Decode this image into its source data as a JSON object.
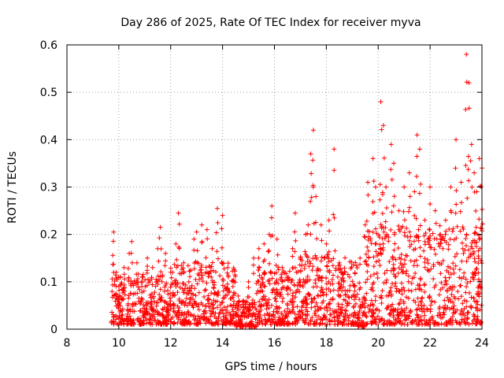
{
  "chart_data": {
    "type": "scatter",
    "title": "Day 286 of 2025, Rate Of TEC Index for receiver myva",
    "xlabel": "GPS time / hours",
    "ylabel": "ROTI / TECUs",
    "xlim": [
      8,
      24
    ],
    "ylim": [
      0,
      0.6
    ],
    "xticks": [
      8,
      10,
      12,
      14,
      16,
      18,
      20,
      22,
      24
    ],
    "xtick_labels": [
      "8",
      "10",
      "12",
      "14",
      "16",
      "18",
      "20",
      "22",
      "24"
    ],
    "yticks": [
      0,
      0.1,
      0.2,
      0.3,
      0.4,
      0.5,
      0.6
    ],
    "ytick_labels": [
      "0",
      "0.1",
      "0.2",
      "0.3",
      "0.4",
      "0.5",
      "0.6"
    ],
    "grid": true,
    "marker": "plus",
    "color": "#ff0000",
    "series": [
      {
        "name": "ROTI",
        "points": [
          [
            9.8,
            0.205
          ],
          [
            9.9,
            0.12
          ],
          [
            10.0,
            0.09
          ],
          [
            10.2,
            0.13
          ],
          [
            10.4,
            0.16
          ],
          [
            10.5,
            0.185
          ],
          [
            10.7,
            0.14
          ],
          [
            10.9,
            0.11
          ],
          [
            11.1,
            0.15
          ],
          [
            11.3,
            0.13
          ],
          [
            11.5,
            0.17
          ],
          [
            11.6,
            0.215
          ],
          [
            11.8,
            0.16
          ],
          [
            12.0,
            0.12
          ],
          [
            12.2,
            0.18
          ],
          [
            12.3,
            0.245
          ],
          [
            12.5,
            0.14
          ],
          [
            12.7,
            0.1
          ],
          [
            12.9,
            0.19
          ],
          [
            13.0,
            0.205
          ],
          [
            13.2,
            0.22
          ],
          [
            13.4,
            0.21
          ],
          [
            13.6,
            0.17
          ],
          [
            13.8,
            0.255
          ],
          [
            14.0,
            0.24
          ],
          [
            14.2,
            0.13
          ],
          [
            14.4,
            0.09
          ],
          [
            14.6,
            0.07
          ],
          [
            14.8,
            0.06
          ],
          [
            15.0,
            0.1
          ],
          [
            15.2,
            0.15
          ],
          [
            15.4,
            0.17
          ],
          [
            15.6,
            0.18
          ],
          [
            15.8,
            0.2
          ],
          [
            15.9,
            0.26
          ],
          [
            16.1,
            0.19
          ],
          [
            16.3,
            0.13
          ],
          [
            16.5,
            0.11
          ],
          [
            16.7,
            0.17
          ],
          [
            16.8,
            0.245
          ],
          [
            17.0,
            0.15
          ],
          [
            17.2,
            0.2
          ],
          [
            17.3,
            0.22
          ],
          [
            17.4,
            0.37
          ],
          [
            17.5,
            0.42
          ],
          [
            17.6,
            0.28
          ],
          [
            17.8,
            0.22
          ],
          [
            18.0,
            0.18
          ],
          [
            18.1,
            0.23
          ],
          [
            18.3,
            0.38
          ],
          [
            18.5,
            0.14
          ],
          [
            18.7,
            0.12
          ],
          [
            18.9,
            0.11
          ],
          [
            19.1,
            0.09
          ],
          [
            19.3,
            0.15
          ],
          [
            19.5,
            0.22
          ],
          [
            19.6,
            0.31
          ],
          [
            19.8,
            0.36
          ],
          [
            19.9,
            0.3
          ],
          [
            20.1,
            0.48
          ],
          [
            20.2,
            0.43
          ],
          [
            20.3,
            0.3
          ],
          [
            20.5,
            0.39
          ],
          [
            20.6,
            0.35
          ],
          [
            20.8,
            0.25
          ],
          [
            21.0,
            0.3
          ],
          [
            21.2,
            0.33
          ],
          [
            21.4,
            0.29
          ],
          [
            21.5,
            0.41
          ],
          [
            21.6,
            0.38
          ],
          [
            21.8,
            0.23
          ],
          [
            22.0,
            0.3
          ],
          [
            22.2,
            0.25
          ],
          [
            22.4,
            0.19
          ],
          [
            22.6,
            0.23
          ],
          [
            22.8,
            0.3
          ],
          [
            23.0,
            0.4
          ],
          [
            23.2,
            0.31
          ],
          [
            23.4,
            0.58
          ],
          [
            23.5,
            0.52
          ],
          [
            23.6,
            0.39
          ],
          [
            23.7,
            0.33
          ],
          [
            23.8,
            0.29
          ],
          [
            23.9,
            0.36
          ],
          [
            24.0,
            0.34
          ]
        ]
      }
    ],
    "background_band": {
      "segments": [
        {
          "x_start": 9.7,
          "x_end": 12.0,
          "y_low": 0.01,
          "y_high": 0.12
        },
        {
          "x_start": 12.0,
          "x_end": 14.5,
          "y_low": 0.01,
          "y_high": 0.14
        },
        {
          "x_start": 14.5,
          "x_end": 15.3,
          "y_low": 0.005,
          "y_high": 0.06
        },
        {
          "x_start": 15.3,
          "x_end": 17.0,
          "y_low": 0.01,
          "y_high": 0.13
        },
        {
          "x_start": 17.0,
          "x_end": 19.2,
          "y_low": 0.01,
          "y_high": 0.16
        },
        {
          "x_start": 19.2,
          "x_end": 19.5,
          "y_low": 0.005,
          "y_high": 0.07
        },
        {
          "x_start": 19.5,
          "x_end": 24.0,
          "y_low": 0.01,
          "y_high": 0.22
        }
      ]
    }
  }
}
